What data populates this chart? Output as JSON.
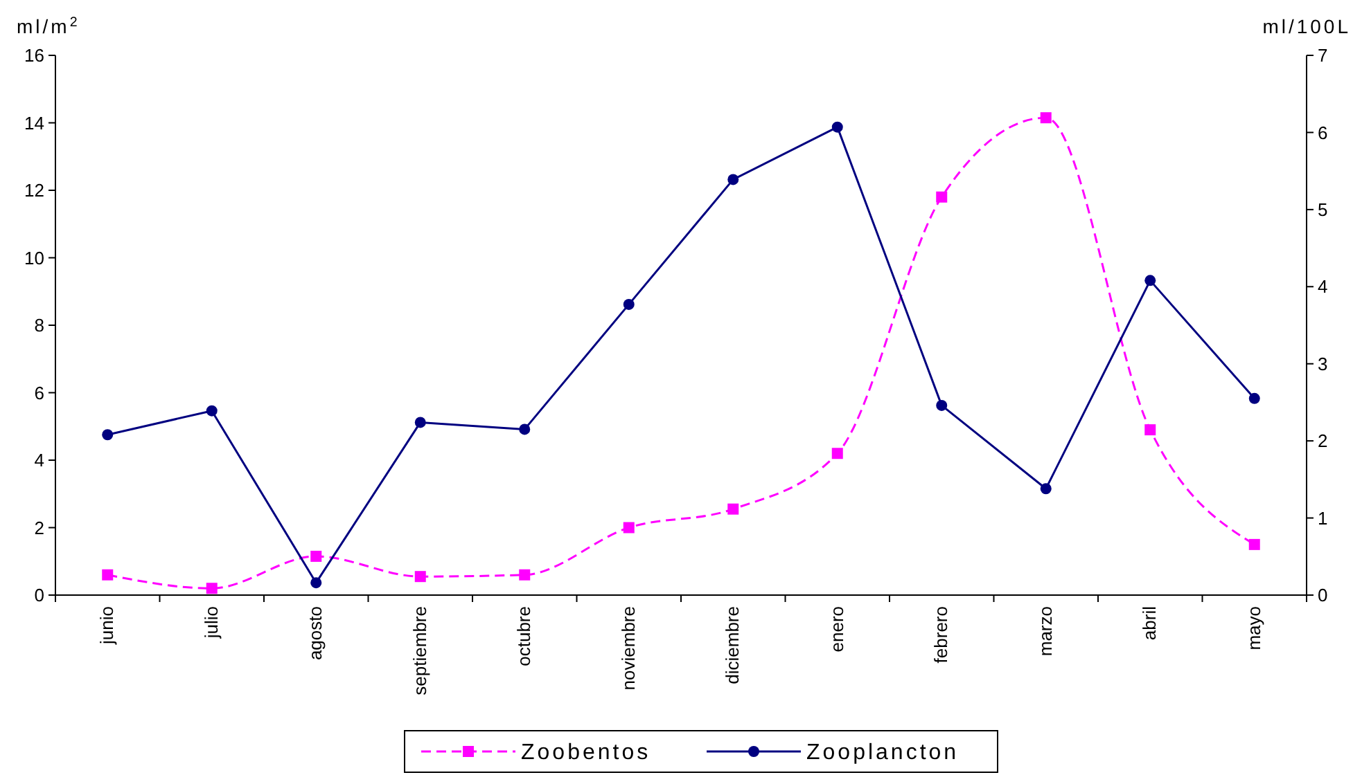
{
  "chart_data": {
    "type": "line",
    "ylabel": "ml/m$^{2}$",
    "y2label": "ml/100L",
    "categories": [
      "junio",
      "julio",
      "agosto",
      "septiembre",
      "octubre",
      "noviembre",
      "diciembre",
      "enero",
      "febrero",
      "marzo",
      "abril",
      "mayo"
    ],
    "series": [
      {
        "name": "Zoobentos",
        "color": "#ff00ff",
        "marker": "square",
        "line_style": "dashed",
        "values": [
          0.6,
          0.2,
          1.15,
          0.55,
          0.6,
          2.0,
          2.55,
          4.2,
          11.8,
          14.15,
          4.9,
          1.5
        ]
      },
      {
        "name": "Zooplancton",
        "color": "#000080",
        "marker": "circle",
        "line_style": "solid",
        "axis": "y2",
        "values": [
          2.08,
          2.39,
          0.16,
          2.24,
          2.15,
          3.77,
          5.39,
          6.07,
          2.46,
          1.38,
          4.08,
          2.55
        ]
      }
    ],
    "ylim": [
      0,
      16
    ],
    "yticks": [
      0,
      2,
      4,
      6,
      8,
      10,
      12,
      14,
      16
    ],
    "y2lim": [
      0,
      7
    ],
    "y2ticks": [
      0,
      1,
      2,
      3,
      4,
      5,
      6,
      7
    ],
    "grid": false,
    "legend": "bottom"
  }
}
